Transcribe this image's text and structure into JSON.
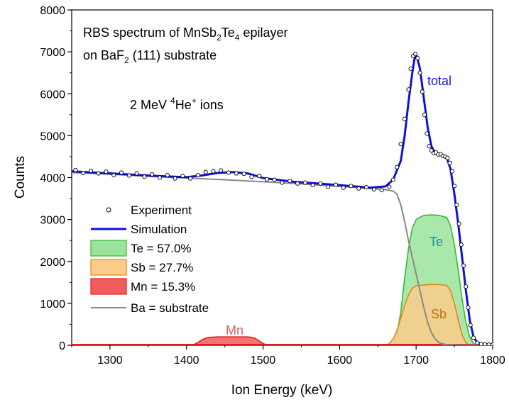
{
  "chart_data": {
    "type": "area",
    "xlabel": "Ion Energy (keV)",
    "ylabel": "Counts",
    "xlim": [
      1250,
      1800
    ],
    "ylim": [
      0,
      8000
    ],
    "x_ticks": [
      "1300",
      "1400",
      "1500",
      "1600",
      "1700",
      "1800"
    ],
    "x_tick_values": [
      1300,
      1400,
      1500,
      1600,
      1700,
      1800
    ],
    "y_ticks": [
      "0",
      "1000",
      "2000",
      "3000",
      "4000",
      "5000",
      "6000",
      "7000",
      "8000"
    ],
    "y_tick_values": [
      0,
      1000,
      2000,
      3000,
      4000,
      5000,
      6000,
      7000,
      8000
    ],
    "annotations": {
      "title_line1": {
        "main": "RBS spectrum of MnSb",
        "sub1": "2",
        "mid": "Te",
        "sub2": "4",
        "tail": " epilayer"
      },
      "title_line2": {
        "main": "on BaF",
        "sub": "2",
        "tail": " (111) substrate"
      },
      "beam": {
        "pre": "2 MeV ",
        "sup1": "4",
        "mid": "He",
        "sup2": "+",
        "tail": " ions"
      },
      "total_label": "total",
      "te_label": "Te",
      "sb_label": "Sb",
      "mn_label": "Mn"
    },
    "legend": {
      "position": "center-left",
      "entries": [
        {
          "label": "Experiment",
          "kind": "marker"
        },
        {
          "label": "Simulation",
          "kind": "line",
          "color": "#1010d8"
        },
        {
          "label": "Te = 57.0%",
          "kind": "area",
          "color": "#9be39b"
        },
        {
          "label": "Sb = 27.7%",
          "kind": "area",
          "color": "#fbcb8a"
        },
        {
          "label": "Mn = 15.3%",
          "kind": "area",
          "color": "#f25c5c"
        },
        {
          "label": "Ba = substrate",
          "kind": "line",
          "color": "#888888"
        }
      ]
    },
    "colors": {
      "simulation": "#1010d8",
      "te_fill": "#9be39b",
      "te_edge": "#33bb33",
      "te_text": "#1a8f8f",
      "sb_fill": "#fbcb8a",
      "sb_edge": "#e08a10",
      "sb_text": "#b8731a",
      "mn_fill": "#f25c5c",
      "mn_edge": "#e02020",
      "mn_text": "#e06060",
      "substrate": "#888888",
      "total_text": "#1a1ae0"
    },
    "series": [
      {
        "name": "Simulation",
        "x": [
          1250,
          1280,
          1320,
          1360,
          1400,
          1420,
          1440,
          1460,
          1480,
          1500,
          1540,
          1600,
          1640,
          1660,
          1670,
          1680,
          1685,
          1690,
          1695,
          1698,
          1700,
          1705,
          1710,
          1715,
          1720,
          1725,
          1730,
          1735,
          1740,
          1745,
          1750,
          1755,
          1760,
          1765,
          1770,
          1775,
          1780,
          1790,
          1800
        ],
        "y": [
          4150,
          4120,
          4080,
          4040,
          4010,
          4050,
          4110,
          4130,
          4100,
          3990,
          3900,
          3820,
          3760,
          3790,
          3950,
          4400,
          5000,
          5800,
          6500,
          6850,
          6950,
          6600,
          5900,
          5200,
          4750,
          4580,
          4550,
          4520,
          4480,
          4200,
          3600,
          2900,
          2100,
          1300,
          600,
          200,
          60,
          20,
          20
        ]
      },
      {
        "name": "Ba = substrate",
        "x": [
          1250,
          1300,
          1350,
          1400,
          1450,
          1500,
          1550,
          1600,
          1640,
          1660,
          1670,
          1675,
          1680,
          1685,
          1690,
          1695,
          1700,
          1705,
          1710,
          1715,
          1720,
          1725,
          1730,
          1740,
          1760,
          1800
        ],
        "y": [
          4120,
          4080,
          4030,
          3990,
          3950,
          3900,
          3850,
          3790,
          3740,
          3710,
          3680,
          3600,
          3350,
          2950,
          2500,
          2100,
          1700,
          1300,
          900,
          550,
          300,
          150,
          60,
          10,
          0,
          0
        ]
      },
      {
        "name": "Te = 57.0%",
        "x": [
          1670,
          1675,
          1680,
          1685,
          1690,
          1695,
          1700,
          1710,
          1720,
          1730,
          1740,
          1745,
          1750,
          1755,
          1760,
          1765,
          1770,
          1775,
          1780
        ],
        "y": [
          0,
          250,
          800,
          1600,
          2300,
          2800,
          3000,
          3100,
          3110,
          3100,
          3050,
          2850,
          2400,
          1800,
          1100,
          550,
          200,
          40,
          0
        ]
      },
      {
        "name": "Sb = 27.7%",
        "x": [
          1660,
          1665,
          1670,
          1675,
          1680,
          1685,
          1690,
          1695,
          1700,
          1710,
          1720,
          1730,
          1740,
          1745,
          1750,
          1755,
          1760,
          1765,
          1770
        ],
        "y": [
          0,
          40,
          150,
          350,
          650,
          950,
          1200,
          1360,
          1420,
          1440,
          1450,
          1450,
          1430,
          1300,
          1000,
          600,
          250,
          60,
          0
        ]
      },
      {
        "name": "Mn = 15.3%",
        "x": [
          1400,
          1410,
          1415,
          1420,
          1425,
          1430,
          1440,
          1460,
          1480,
          1485,
          1490,
          1495,
          1500,
          1505,
          1510
        ],
        "y": [
          0,
          20,
          70,
          130,
          170,
          190,
          200,
          200,
          200,
          190,
          160,
          100,
          40,
          10,
          0
        ]
      }
    ],
    "experiment": {
      "x": [
        1255,
        1265,
        1275,
        1285,
        1295,
        1305,
        1315,
        1325,
        1335,
        1345,
        1355,
        1365,
        1375,
        1385,
        1395,
        1405,
        1415,
        1425,
        1435,
        1445,
        1455,
        1465,
        1475,
        1485,
        1495,
        1505,
        1515,
        1525,
        1535,
        1545,
        1555,
        1565,
        1575,
        1585,
        1595,
        1605,
        1615,
        1625,
        1635,
        1645,
        1655,
        1665,
        1670,
        1675,
        1680,
        1685,
        1690,
        1693,
        1696,
        1699,
        1702,
        1705,
        1708,
        1711,
        1714,
        1717,
        1720,
        1723,
        1726,
        1729,
        1732,
        1735,
        1738,
        1741,
        1744,
        1747,
        1750,
        1753,
        1756,
        1759,
        1762,
        1765,
        1768,
        1771,
        1775,
        1780,
        1785,
        1790,
        1795,
        1800
      ],
      "y": [
        4180,
        4110,
        4160,
        4100,
        4140,
        4060,
        4120,
        4050,
        4100,
        4020,
        4080,
        4000,
        4060,
        3980,
        4040,
        3980,
        4060,
        4130,
        4150,
        4170,
        4120,
        4100,
        4090,
        4020,
        4040,
        3960,
        3950,
        3880,
        3920,
        3860,
        3880,
        3820,
        3860,
        3780,
        3830,
        3760,
        3800,
        3740,
        3770,
        3720,
        3700,
        3780,
        3950,
        4250,
        4800,
        5400,
        6100,
        6600,
        6900,
        6950,
        6850,
        6500,
        6050,
        5500,
        5050,
        4750,
        4650,
        4580,
        4600,
        4550,
        4560,
        4520,
        4500,
        4470,
        4350,
        4150,
        3800,
        3350,
        2900,
        2400,
        1900,
        1400,
        900,
        480,
        180,
        60,
        30,
        20,
        15,
        15
      ]
    }
  }
}
